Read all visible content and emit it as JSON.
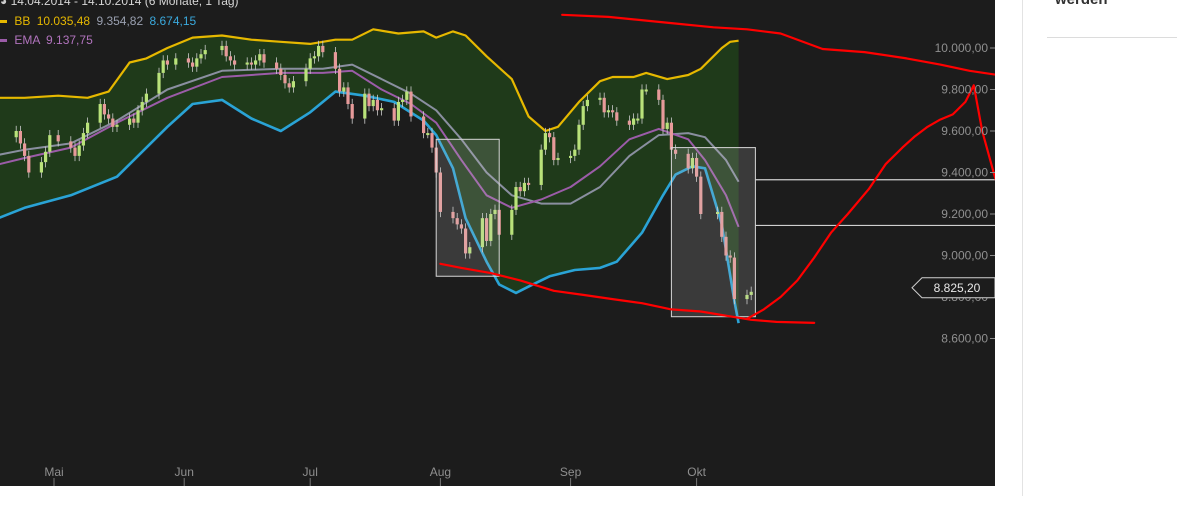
{
  "header": {
    "range_text": "14.04.2014 - 14.10.2014 (6 Monate, 1 Tag)"
  },
  "legend": {
    "bb": {
      "label": "BB",
      "upper": "10.035,48",
      "middle": "9.354,82",
      "lower": "8.674,15"
    },
    "ema": {
      "label": "EMA",
      "value": "9.137,75"
    }
  },
  "sidebar": {
    "cut_text": "werden"
  },
  "chart_data": {
    "type": "candlestick",
    "instrument_label": "",
    "x_ticks": [
      "Mai",
      "Jun",
      "Jul",
      "Aug",
      "Sep",
      "Okt"
    ],
    "y_ticks": [
      "8.600,00",
      "8.800,00",
      "9.000,00",
      "9.200,00",
      "9.400,00",
      "9.600,00",
      "9.800,00",
      "10.000,00"
    ],
    "ylim": [
      8550,
      10200
    ],
    "last_price_label": "8.825,20",
    "last_price": 8825.2,
    "colors": {
      "background": "#1c1c1c",
      "band_fill": "#1f3a1a",
      "bb_upper": "#e6b800",
      "bb_middle": "#8a8fa0",
      "bb_lower": "#2aa3d6",
      "ema": "#9b5ca8",
      "up_candle": "#b9e27a",
      "down_candle": "#e79a9a",
      "annotation": "#ff0000",
      "box": "#d6d6d6"
    },
    "bb_upper": [
      [
        "2014-04-14",
        9780
      ],
      [
        "2014-04-17",
        9760
      ],
      [
        "2014-04-24",
        9760
      ],
      [
        "2014-05-02",
        9770
      ],
      [
        "2014-05-09",
        9760
      ],
      [
        "2014-05-14",
        9790
      ],
      [
        "2014-05-19",
        9930
      ],
      [
        "2014-05-23",
        9950
      ],
      [
        "2014-05-28",
        10000
      ],
      [
        "2014-06-03",
        10050
      ],
      [
        "2014-06-10",
        10060
      ],
      [
        "2014-06-17",
        10040
      ],
      [
        "2014-06-24",
        10030
      ],
      [
        "2014-07-01",
        10020
      ],
      [
        "2014-07-07",
        10040
      ],
      [
        "2014-07-11",
        10040
      ],
      [
        "2014-07-16",
        10090
      ],
      [
        "2014-07-22",
        10070
      ],
      [
        "2014-07-28",
        10080
      ],
      [
        "2014-07-31",
        10050
      ],
      [
        "2014-08-04",
        10080
      ],
      [
        "2014-08-07",
        10060
      ],
      [
        "2014-08-12",
        9960
      ],
      [
        "2014-08-18",
        9850
      ],
      [
        "2014-08-22",
        9670
      ],
      [
        "2014-08-26",
        9600
      ],
      [
        "2014-08-29",
        9620
      ],
      [
        "2014-09-03",
        9740
      ],
      [
        "2014-09-08",
        9840
      ],
      [
        "2014-09-11",
        9860
      ],
      [
        "2014-09-16",
        9860
      ],
      [
        "2014-09-19",
        9880
      ],
      [
        "2014-09-24",
        9850
      ],
      [
        "2014-09-29",
        9870
      ],
      [
        "2014-10-02",
        9900
      ],
      [
        "2014-10-07",
        10000
      ],
      [
        "2014-10-09",
        10030
      ],
      [
        "2014-10-11",
        10035
      ]
    ],
    "bb_middle": [
      [
        "2014-04-14",
        9470
      ],
      [
        "2014-04-24",
        9510
      ],
      [
        "2014-05-05",
        9540
      ],
      [
        "2014-05-16",
        9650
      ],
      [
        "2014-05-28",
        9800
      ],
      [
        "2014-06-10",
        9890
      ],
      [
        "2014-06-24",
        9900
      ],
      [
        "2014-07-04",
        9900
      ],
      [
        "2014-07-11",
        9920
      ],
      [
        "2014-07-18",
        9850
      ],
      [
        "2014-07-25",
        9780
      ],
      [
        "2014-07-31",
        9700
      ],
      [
        "2014-08-06",
        9560
      ],
      [
        "2014-08-12",
        9400
      ],
      [
        "2014-08-18",
        9290
      ],
      [
        "2014-08-25",
        9250
      ],
      [
        "2014-09-01",
        9250
      ],
      [
        "2014-09-08",
        9330
      ],
      [
        "2014-09-15",
        9480
      ],
      [
        "2014-09-22",
        9580
      ],
      [
        "2014-09-29",
        9590
      ],
      [
        "2014-10-03",
        9570
      ],
      [
        "2014-10-08",
        9460
      ],
      [
        "2014-10-11",
        9355
      ]
    ],
    "bb_lower": [
      [
        "2014-04-14",
        9150
      ],
      [
        "2014-04-24",
        9230
      ],
      [
        "2014-05-05",
        9290
      ],
      [
        "2014-05-16",
        9380
      ],
      [
        "2014-05-28",
        9620
      ],
      [
        "2014-06-03",
        9730
      ],
      [
        "2014-06-10",
        9750
      ],
      [
        "2014-06-17",
        9660
      ],
      [
        "2014-06-24",
        9600
      ],
      [
        "2014-07-01",
        9690
      ],
      [
        "2014-07-07",
        9790
      ],
      [
        "2014-07-14",
        9770
      ],
      [
        "2014-07-21",
        9740
      ],
      [
        "2014-07-28",
        9650
      ],
      [
        "2014-07-31",
        9580
      ],
      [
        "2014-08-04",
        9420
      ],
      [
        "2014-08-07",
        9180
      ],
      [
        "2014-08-12",
        8970
      ],
      [
        "2014-08-15",
        8860
      ],
      [
        "2014-08-19",
        8820
      ],
      [
        "2014-08-22",
        8850
      ],
      [
        "2014-08-27",
        8900
      ],
      [
        "2014-09-02",
        8930
      ],
      [
        "2014-09-08",
        8940
      ],
      [
        "2014-09-12",
        8970
      ],
      [
        "2014-09-18",
        9110
      ],
      [
        "2014-09-23",
        9290
      ],
      [
        "2014-09-26",
        9390
      ],
      [
        "2014-09-30",
        9430
      ],
      [
        "2014-10-03",
        9420
      ],
      [
        "2014-10-07",
        9150
      ],
      [
        "2014-10-10",
        8780
      ],
      [
        "2014-10-11",
        8674
      ]
    ],
    "ema": [
      [
        "2014-04-14",
        9420
      ],
      [
        "2014-04-24",
        9470
      ],
      [
        "2014-05-05",
        9520
      ],
      [
        "2014-05-16",
        9640
      ],
      [
        "2014-05-28",
        9760
      ],
      [
        "2014-06-10",
        9860
      ],
      [
        "2014-06-24",
        9880
      ],
      [
        "2014-07-04",
        9880
      ],
      [
        "2014-07-11",
        9890
      ],
      [
        "2014-07-18",
        9800
      ],
      [
        "2014-07-25",
        9730
      ],
      [
        "2014-07-31",
        9640
      ],
      [
        "2014-08-06",
        9460
      ],
      [
        "2014-08-12",
        9290
      ],
      [
        "2014-08-18",
        9230
      ],
      [
        "2014-08-25",
        9270
      ],
      [
        "2014-09-01",
        9330
      ],
      [
        "2014-09-08",
        9430
      ],
      [
        "2014-09-15",
        9560
      ],
      [
        "2014-09-22",
        9610
      ],
      [
        "2014-09-29",
        9560
      ],
      [
        "2014-10-03",
        9460
      ],
      [
        "2014-10-08",
        9290
      ],
      [
        "2014-10-11",
        9138
      ]
    ],
    "candles": [
      [
        "2014-04-14",
        9320,
        9350
      ],
      [
        "2014-04-15",
        9350,
        9450
      ],
      [
        "2014-04-16",
        9450,
        9590
      ],
      [
        "2014-04-17",
        9590,
        9570
      ],
      [
        "2014-04-22",
        9570,
        9600
      ],
      [
        "2014-04-23",
        9600,
        9540
      ],
      [
        "2014-04-24",
        9540,
        9480
      ],
      [
        "2014-04-25",
        9480,
        9400
      ],
      [
        "2014-04-28",
        9400,
        9450
      ],
      [
        "2014-04-29",
        9450,
        9500
      ],
      [
        "2014-04-30",
        9500,
        9580
      ],
      [
        "2014-05-02",
        9580,
        9550
      ],
      [
        "2014-05-05",
        9550,
        9520
      ],
      [
        "2014-05-06",
        9520,
        9480
      ],
      [
        "2014-05-07",
        9480,
        9530
      ],
      [
        "2014-05-08",
        9530,
        9590
      ],
      [
        "2014-05-09",
        9590,
        9640
      ],
      [
        "2014-05-12",
        9640,
        9730
      ],
      [
        "2014-05-13",
        9730,
        9680
      ],
      [
        "2014-05-14",
        9680,
        9660
      ],
      [
        "2014-05-15",
        9660,
        9620
      ],
      [
        "2014-05-16",
        9620,
        9630
      ],
      [
        "2014-05-19",
        9630,
        9660
      ],
      [
        "2014-05-20",
        9660,
        9640
      ],
      [
        "2014-05-21",
        9640,
        9700
      ],
      [
        "2014-05-22",
        9700,
        9740
      ],
      [
        "2014-05-23",
        9740,
        9780
      ],
      [
        "2014-05-26",
        9780,
        9880
      ],
      [
        "2014-05-27",
        9880,
        9940
      ],
      [
        "2014-05-28",
        9940,
        9920
      ],
      [
        "2014-05-30",
        9920,
        9950
      ],
      [
        "2014-06-02",
        9950,
        9930
      ],
      [
        "2014-06-03",
        9930,
        9910
      ],
      [
        "2014-06-04",
        9910,
        9950
      ],
      [
        "2014-06-05",
        9950,
        9970
      ],
      [
        "2014-06-06",
        9970,
        9990
      ],
      [
        "2014-06-10",
        9990,
        10010
      ],
      [
        "2014-06-11",
        10010,
        9960
      ],
      [
        "2014-06-12",
        9960,
        9940
      ],
      [
        "2014-06-13",
        9940,
        9920
      ],
      [
        "2014-06-16",
        9920,
        9930
      ],
      [
        "2014-06-17",
        9930,
        9920
      ],
      [
        "2014-06-18",
        9920,
        9940
      ],
      [
        "2014-06-19",
        9940,
        9970
      ],
      [
        "2014-06-20",
        9970,
        9930
      ],
      [
        "2014-06-23",
        9930,
        9900
      ],
      [
        "2014-06-24",
        9900,
        9870
      ],
      [
        "2014-06-25",
        9870,
        9830
      ],
      [
        "2014-06-26",
        9830,
        9810
      ],
      [
        "2014-06-27",
        9810,
        9840
      ],
      [
        "2014-06-30",
        9840,
        9900
      ],
      [
        "2014-07-01",
        9900,
        9950
      ],
      [
        "2014-07-02",
        9950,
        9960
      ],
      [
        "2014-07-03",
        9960,
        10010
      ],
      [
        "2014-07-04",
        10010,
        9980
      ],
      [
        "2014-07-07",
        9980,
        9900
      ],
      [
        "2014-07-08",
        9900,
        9790
      ],
      [
        "2014-07-09",
        9790,
        9810
      ],
      [
        "2014-07-10",
        9810,
        9730
      ],
      [
        "2014-07-11",
        9730,
        9660
      ],
      [
        "2014-07-14",
        9660,
        9780
      ],
      [
        "2014-07-15",
        9780,
        9720
      ],
      [
        "2014-07-16",
        9720,
        9750
      ],
      [
        "2014-07-17",
        9750,
        9700
      ],
      [
        "2014-07-18",
        9700,
        9710
      ],
      [
        "2014-07-21",
        9710,
        9650
      ],
      [
        "2014-07-22",
        9650,
        9740
      ],
      [
        "2014-07-23",
        9740,
        9750
      ],
      [
        "2014-07-24",
        9750,
        9790
      ],
      [
        "2014-07-25",
        9790,
        9670
      ],
      [
        "2014-07-28",
        9670,
        9590
      ],
      [
        "2014-07-29",
        9590,
        9590
      ],
      [
        "2014-07-30",
        9590,
        9520
      ],
      [
        "2014-07-31",
        9520,
        9400
      ],
      [
        "2014-08-01",
        9400,
        9210
      ],
      [
        "2014-08-04",
        9210,
        9180
      ],
      [
        "2014-08-05",
        9180,
        9150
      ],
      [
        "2014-08-06",
        9150,
        9130
      ],
      [
        "2014-08-07",
        9130,
        9010
      ],
      [
        "2014-08-08",
        9010,
        9040
      ],
      [
        "2014-08-11",
        9040,
        9180
      ],
      [
        "2014-08-12",
        9180,
        9070
      ],
      [
        "2014-08-13",
        9070,
        9200
      ],
      [
        "2014-08-14",
        9200,
        9220
      ],
      [
        "2014-08-15",
        9220,
        9100
      ],
      [
        "2014-08-18",
        9100,
        9220
      ],
      [
        "2014-08-19",
        9220,
        9330
      ],
      [
        "2014-08-20",
        9330,
        9310
      ],
      [
        "2014-08-21",
        9310,
        9350
      ],
      [
        "2014-08-22",
        9350,
        9340
      ],
      [
        "2014-08-25",
        9340,
        9510
      ],
      [
        "2014-08-26",
        9510,
        9590
      ],
      [
        "2014-08-27",
        9590,
        9570
      ],
      [
        "2014-08-28",
        9570,
        9460
      ],
      [
        "2014-08-29",
        9460,
        9470
      ],
      [
        "2014-09-01",
        9470,
        9480
      ],
      [
        "2014-09-02",
        9480,
        9510
      ],
      [
        "2014-09-03",
        9510,
        9630
      ],
      [
        "2014-09-04",
        9630,
        9720
      ],
      [
        "2014-09-05",
        9720,
        9750
      ],
      [
        "2014-09-08",
        9750,
        9760
      ],
      [
        "2014-09-09",
        9760,
        9690
      ],
      [
        "2014-09-10",
        9690,
        9700
      ],
      [
        "2014-09-11",
        9700,
        9690
      ],
      [
        "2014-09-12",
        9690,
        9650
      ],
      [
        "2014-09-15",
        9650,
        9630
      ],
      [
        "2014-09-16",
        9630,
        9660
      ],
      [
        "2014-09-17",
        9660,
        9660
      ],
      [
        "2014-09-18",
        9660,
        9800
      ],
      [
        "2014-09-19",
        9800,
        9800
      ],
      [
        "2014-09-22",
        9800,
        9750
      ],
      [
        "2014-09-23",
        9750,
        9610
      ],
      [
        "2014-09-24",
        9610,
        9640
      ],
      [
        "2014-09-25",
        9640,
        9510
      ],
      [
        "2014-09-26",
        9510,
        9490
      ],
      [
        "2014-09-29",
        9490,
        9420
      ],
      [
        "2014-09-30",
        9420,
        9470
      ],
      [
        "2014-10-01",
        9470,
        9380
      ],
      [
        "2014-10-02",
        9380,
        9200
      ],
      [
        "2014-10-06",
        9200,
        9210
      ],
      [
        "2014-10-07",
        9210,
        9090
      ],
      [
        "2014-10-08",
        9090,
        9000
      ],
      [
        "2014-10-09",
        9000,
        8990
      ],
      [
        "2014-10-10",
        8990,
        8790
      ],
      [
        "2014-10-13",
        8790,
        8810
      ],
      [
        "2014-10-14",
        8810,
        8825
      ]
    ],
    "annotations": {
      "boxes": [
        {
          "from": "2014-07-31",
          "to": "2014-08-15",
          "low": 8900,
          "high": 9560
        },
        {
          "from": "2014-09-25",
          "to": "2014-10-15",
          "low": 8705,
          "high": 9520
        }
      ],
      "h_lines": [
        {
          "from": "2014-10-15",
          "to": "2014-12-25",
          "y": 9365
        },
        {
          "from": "2014-10-15",
          "to": "2014-12-25",
          "y": 9145
        }
      ],
      "red_curves": [
        [
          [
            "2014-08-30",
            10160
          ],
          [
            "2014-09-10",
            10150
          ],
          [
            "2014-09-25",
            10120
          ],
          [
            "2014-10-05",
            10100
          ],
          [
            "2014-10-13",
            10090
          ],
          [
            "2014-10-21",
            10070
          ],
          [
            "2014-10-31",
            9995
          ],
          [
            "2014-11-10",
            9980
          ],
          [
            "2014-11-20",
            9950
          ],
          [
            "2014-11-28",
            9920
          ],
          [
            "2014-12-05",
            9890
          ],
          [
            "2014-12-15",
            9860
          ],
          [
            "2014-12-25",
            9750
          ]
        ],
        [
          [
            "2014-08-01",
            8960
          ],
          [
            "2014-08-06",
            8940
          ],
          [
            "2014-08-13",
            8915
          ],
          [
            "2014-08-20",
            8880
          ],
          [
            "2014-08-28",
            8830
          ],
          [
            "2014-09-04",
            8810
          ],
          [
            "2014-09-11",
            8790
          ],
          [
            "2014-09-18",
            8770
          ],
          [
            "2014-09-25",
            8740
          ],
          [
            "2014-10-02",
            8730
          ],
          [
            "2014-10-08",
            8710
          ],
          [
            "2014-10-14",
            8690
          ],
          [
            "2014-10-20",
            8680
          ],
          [
            "2014-10-29",
            8675
          ]
        ],
        [
          [
            "2014-10-13",
            8695
          ],
          [
            "2014-10-17",
            8740
          ],
          [
            "2014-10-21",
            8800
          ],
          [
            "2014-10-25",
            8880
          ],
          [
            "2014-10-29",
            8990
          ],
          [
            "2014-11-02",
            9110
          ],
          [
            "2014-11-06",
            9200
          ],
          [
            "2014-11-11",
            9320
          ],
          [
            "2014-11-15",
            9440
          ],
          [
            "2014-11-19",
            9520
          ],
          [
            "2014-11-22",
            9575
          ],
          [
            "2014-11-25",
            9620
          ],
          [
            "2014-11-28",
            9655
          ],
          [
            "2014-12-01",
            9680
          ],
          [
            "2014-12-04",
            9740
          ],
          [
            "2014-12-06",
            9820
          ],
          [
            "2014-12-08",
            9600
          ],
          [
            "2014-12-11",
            9380
          ],
          [
            "2014-12-15",
            9150
          ],
          [
            "2014-12-18",
            9000
          ],
          [
            "2014-12-20",
            8890
          ]
        ]
      ]
    }
  }
}
